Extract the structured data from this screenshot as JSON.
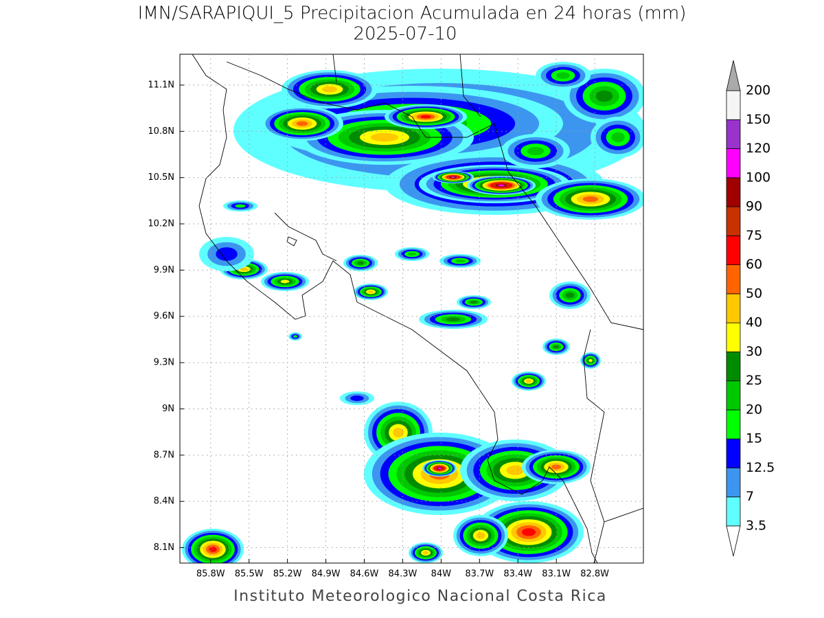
{
  "chart_data": {
    "type": "map",
    "title": "IMN/SARAPIQUI_5 Precipitacion Acumulada en 24 horas (mm)",
    "subtitle": "2025-07-10",
    "footer": "Instituto Meteorologico Nacional Costa Rica",
    "xlim": [
      -86.04,
      -82.42
    ],
    "ylim": [
      8.0,
      11.3
    ],
    "xticks": [
      {
        "value": -85.8,
        "label": "85.8W"
      },
      {
        "value": -85.5,
        "label": "85.5W"
      },
      {
        "value": -85.2,
        "label": "85.2W"
      },
      {
        "value": -84.9,
        "label": "84.9W"
      },
      {
        "value": -84.6,
        "label": "84.6W"
      },
      {
        "value": -84.3,
        "label": "84.3W"
      },
      {
        "value": -84.0,
        "label": "84W"
      },
      {
        "value": -83.7,
        "label": "83.7W"
      },
      {
        "value": -83.4,
        "label": "83.4W"
      },
      {
        "value": -83.1,
        "label": "83.1W"
      },
      {
        "value": -82.8,
        "label": "82.8W"
      }
    ],
    "yticks": [
      {
        "value": 8.1,
        "label": "8.1N"
      },
      {
        "value": 8.4,
        "label": "8.4N"
      },
      {
        "value": 8.7,
        "label": "8.7N"
      },
      {
        "value": 9.0,
        "label": "9N"
      },
      {
        "value": 9.3,
        "label": "9.3N"
      },
      {
        "value": 9.6,
        "label": "9.6N"
      },
      {
        "value": 9.9,
        "label": "9.9N"
      },
      {
        "value": 10.2,
        "label": "10.2N"
      },
      {
        "value": 10.5,
        "label": "10.5N"
      },
      {
        "value": 10.8,
        "label": "10.8N"
      },
      {
        "value": 11.1,
        "label": "11.1N"
      }
    ],
    "grid": true,
    "colorbar": {
      "levels": [
        3.5,
        7,
        12.5,
        15,
        20,
        25,
        30,
        40,
        50,
        60,
        75,
        90,
        100,
        120,
        150,
        200
      ],
      "colors": [
        "#60ffff",
        "#3c96f0",
        "#0000ff",
        "#00ff00",
        "#00c800",
        "#008c00",
        "#ffff00",
        "#ffc800",
        "#ff6400",
        "#ff0000",
        "#c83200",
        "#a00000",
        "#ff00ff",
        "#9933cc",
        "#f5f5f5"
      ],
      "over_color": "#aaaaaa",
      "under_color": "#ffffff"
    }
  }
}
